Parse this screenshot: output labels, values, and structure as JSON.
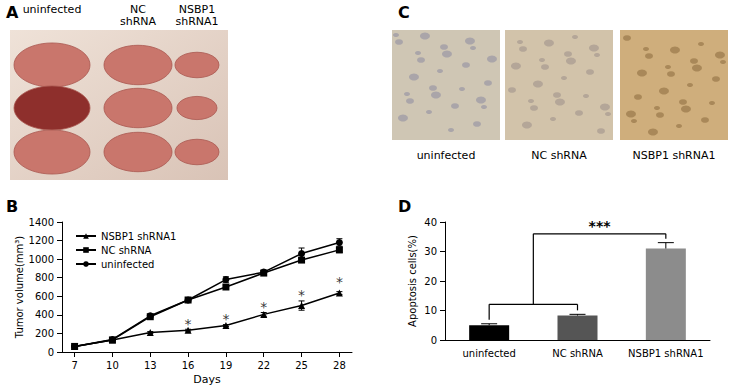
{
  "panels": {
    "A": {
      "label": "A",
      "columns": [
        "uninfected",
        "NC shRNA",
        "NSBP1 shRNA1"
      ]
    },
    "C": {
      "label": "C",
      "columns": [
        "uninfected",
        "NC shRNA",
        "NSBP1 shRNA1"
      ]
    }
  },
  "chart_data": [
    {
      "panel_label": "B",
      "type": "line",
      "x": [
        7,
        10,
        13,
        16,
        19,
        22,
        25,
        28
      ],
      "xlabel": "Days",
      "ylabel": "Tumor volume(mm³)",
      "xlim": [
        6,
        29
      ],
      "xticks": [
        7,
        10,
        13,
        16,
        19,
        22,
        25,
        28
      ],
      "ylim": [
        0,
        1400
      ],
      "yticks": [
        0,
        200,
        400,
        600,
        800,
        1000,
        1200,
        1400
      ],
      "grid": false,
      "legend": "upper left",
      "series": [
        {
          "name": "NSBP1 shRNA1",
          "color": "#000000",
          "marker": "triangle",
          "values": [
            60,
            130,
            210,
            235,
            285,
            405,
            500,
            635
          ],
          "errors": [
            5,
            5,
            10,
            10,
            10,
            20,
            50,
            15
          ]
        },
        {
          "name": "NC shRNA",
          "color": "#000000",
          "marker": "square",
          "values": [
            60,
            130,
            380,
            560,
            700,
            850,
            990,
            1100
          ],
          "errors": [
            5,
            5,
            10,
            10,
            15,
            15,
            20,
            30
          ]
        },
        {
          "name": "uninfected",
          "color": "#000000",
          "marker": "circle",
          "values": [
            60,
            135,
            390,
            560,
            780,
            860,
            1060,
            1180
          ],
          "errors": [
            5,
            5,
            10,
            10,
            30,
            20,
            60,
            40
          ]
        }
      ],
      "annotations": [
        {
          "x": 16,
          "y": 300,
          "text": "*"
        },
        {
          "x": 19,
          "y": 360,
          "text": "*"
        },
        {
          "x": 22,
          "y": 480,
          "text": "*"
        },
        {
          "x": 25,
          "y": 610,
          "text": "*"
        },
        {
          "x": 28,
          "y": 750,
          "text": "*"
        }
      ]
    },
    {
      "panel_label": "D",
      "type": "bar",
      "categories": [
        "uninfected",
        "NC shRNA",
        "NSBP1 shRNA1"
      ],
      "values": [
        5,
        8.3,
        31
      ],
      "errors": [
        0.5,
        0.4,
        2
      ],
      "colors": [
        "#000000",
        "#555555",
        "#8c8c8c"
      ],
      "ylabel": "Apoptosis cells(%)",
      "ylim": [
        0,
        40
      ],
      "yticks": [
        0,
        10,
        20,
        30,
        40
      ],
      "grid": false,
      "annotations": [
        {
          "text": "***",
          "from": [
            "uninfected",
            "NC shRNA"
          ],
          "to": "NSBP1 shRNA1",
          "y": 36
        }
      ]
    }
  ]
}
